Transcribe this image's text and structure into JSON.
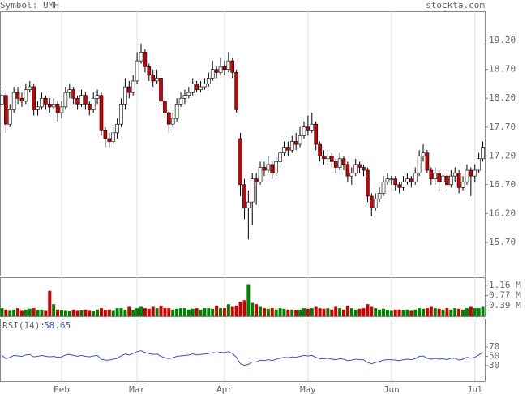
{
  "chart_data": [
    {
      "type": "candlestick",
      "title": "Symbol: UMH",
      "source": "stockta.com",
      "up_color": "#ffffff",
      "down_color": "#cc0000",
      "ylim": [
        15.12,
        19.71
      ],
      "yticks": [
        {
          "value": 15.7,
          "label": "15.70"
        },
        {
          "value": 16.2,
          "label": "16.20"
        },
        {
          "value": 16.7,
          "label": "16.70"
        },
        {
          "value": 17.2,
          "label": "17.20"
        },
        {
          "value": 17.7,
          "label": "17.70"
        },
        {
          "value": 18.2,
          "label": "18.20"
        },
        {
          "value": 18.7,
          "label": "18.70"
        },
        {
          "value": 19.2,
          "label": "19.20"
        }
      ],
      "open": [
        18.1,
        18.25,
        17.75,
        18.0,
        18.3,
        18.2,
        18.15,
        18.35,
        18.4,
        18.0,
        18.05,
        18.2,
        18.1,
        18.05,
        18.1,
        17.95,
        18.05,
        18.3,
        18.35,
        18.2,
        18.1,
        18.25,
        18.1,
        18.0,
        18.2,
        18.25,
        17.65,
        17.5,
        17.45,
        17.6,
        17.75,
        18.1,
        18.4,
        18.3,
        18.5,
        18.85,
        19.0,
        18.75,
        18.6,
        18.5,
        18.55,
        18.15,
        17.95,
        17.75,
        17.85,
        18.1,
        18.2,
        18.25,
        18.3,
        18.45,
        18.35,
        18.4,
        18.45,
        18.55,
        18.7,
        18.65,
        18.75,
        18.7,
        18.85,
        18.65,
        17.5,
        16.7,
        16.3,
        16.4,
        16.8,
        16.75,
        17.0,
        16.95,
        17.05,
        16.9,
        17.1,
        17.25,
        17.35,
        17.3,
        17.45,
        17.4,
        17.55,
        17.7,
        17.65,
        17.75,
        17.4,
        17.2,
        17.15,
        17.2,
        17.1,
        17.0,
        17.15,
        17.05,
        16.85,
        16.9,
        17.05,
        17.0,
        16.95,
        16.5,
        16.3,
        16.45,
        16.55,
        16.75,
        16.8,
        16.8,
        16.7,
        16.65,
        16.75,
        16.8,
        16.75,
        16.9,
        17.2,
        17.25,
        16.95,
        16.8,
        16.9,
        16.75,
        16.85,
        16.7,
        16.85,
        16.9,
        16.65,
        16.75,
        16.95,
        16.85,
        16.95,
        17.15
      ],
      "high": [
        18.35,
        18.3,
        18.1,
        18.4,
        18.4,
        18.3,
        18.45,
        18.5,
        18.45,
        18.15,
        18.3,
        18.25,
        18.2,
        18.2,
        18.15,
        18.15,
        18.4,
        18.45,
        18.4,
        18.25,
        18.35,
        18.3,
        18.15,
        18.3,
        18.35,
        18.3,
        17.7,
        17.6,
        17.7,
        17.85,
        18.2,
        18.55,
        18.5,
        18.6,
        19.0,
        19.15,
        19.05,
        18.8,
        18.7,
        18.7,
        18.6,
        18.2,
        18.0,
        17.95,
        18.2,
        18.3,
        18.35,
        18.4,
        18.55,
        18.5,
        18.5,
        18.55,
        18.65,
        18.85,
        18.75,
        18.9,
        18.85,
        19.0,
        18.9,
        18.7,
        17.6,
        16.8,
        16.6,
        16.9,
        16.9,
        17.1,
        17.1,
        17.2,
        17.1,
        17.2,
        17.35,
        17.45,
        17.45,
        17.55,
        17.6,
        17.7,
        17.8,
        17.9,
        17.95,
        17.8,
        17.45,
        17.3,
        17.3,
        17.25,
        17.15,
        17.25,
        17.2,
        17.1,
        17.0,
        17.15,
        17.1,
        17.05,
        17.0,
        16.55,
        16.55,
        16.65,
        16.85,
        16.9,
        16.85,
        16.85,
        16.75,
        16.85,
        16.9,
        16.85,
        17.0,
        17.3,
        17.4,
        17.3,
        17.0,
        17.0,
        16.95,
        16.95,
        16.9,
        16.95,
        17.0,
        16.95,
        16.85,
        17.05,
        17.0,
        17.05,
        17.25,
        17.45
      ],
      "low": [
        18.0,
        17.6,
        17.7,
        17.95,
        18.1,
        18.05,
        18.1,
        18.3,
        17.9,
        17.9,
        18.0,
        18.0,
        17.95,
        18.0,
        17.8,
        17.85,
        18.0,
        18.2,
        18.1,
        18.0,
        18.05,
        18.0,
        17.9,
        17.95,
        18.1,
        17.55,
        17.35,
        17.35,
        17.4,
        17.5,
        17.7,
        18.0,
        18.2,
        18.25,
        18.45,
        18.8,
        18.65,
        18.5,
        18.4,
        18.45,
        18.05,
        17.85,
        17.6,
        17.7,
        17.8,
        18.05,
        18.1,
        18.2,
        18.25,
        18.3,
        18.3,
        18.35,
        18.4,
        18.5,
        18.55,
        18.6,
        18.6,
        18.65,
        18.55,
        17.95,
        16.5,
        16.1,
        15.75,
        16.0,
        16.35,
        16.7,
        16.85,
        16.9,
        16.8,
        16.85,
        17.0,
        17.2,
        17.2,
        17.25,
        17.3,
        17.35,
        17.5,
        17.55,
        17.6,
        17.3,
        17.1,
        17.05,
        17.05,
        17.0,
        16.9,
        16.95,
        16.95,
        16.75,
        16.7,
        16.85,
        16.9,
        16.85,
        16.4,
        16.15,
        16.25,
        16.4,
        16.5,
        16.7,
        16.7,
        16.6,
        16.55,
        16.6,
        16.7,
        16.65,
        16.7,
        16.85,
        17.1,
        16.9,
        16.7,
        16.7,
        16.6,
        16.7,
        16.6,
        16.65,
        16.75,
        16.55,
        16.6,
        16.7,
        16.5,
        16.75,
        16.9,
        17.1
      ],
      "close": [
        18.25,
        17.75,
        18.0,
        18.3,
        18.2,
        18.15,
        18.35,
        18.4,
        18.0,
        18.05,
        18.2,
        18.1,
        18.05,
        18.1,
        17.95,
        18.05,
        18.3,
        18.35,
        18.2,
        18.1,
        18.25,
        18.1,
        18.0,
        18.2,
        18.25,
        17.65,
        17.5,
        17.45,
        17.6,
        17.75,
        18.1,
        18.4,
        18.3,
        18.5,
        18.85,
        19.0,
        18.75,
        18.6,
        18.5,
        18.55,
        18.15,
        17.95,
        17.75,
        17.85,
        18.1,
        18.2,
        18.25,
        18.3,
        18.45,
        18.35,
        18.4,
        18.45,
        18.55,
        18.7,
        18.65,
        18.75,
        18.7,
        18.85,
        18.65,
        18.0,
        16.7,
        16.3,
        16.4,
        16.8,
        16.75,
        17.0,
        16.95,
        17.05,
        16.9,
        17.1,
        17.25,
        17.35,
        17.3,
        17.45,
        17.4,
        17.55,
        17.7,
        17.65,
        17.75,
        17.4,
        17.2,
        17.15,
        17.2,
        17.1,
        17.0,
        17.15,
        17.05,
        16.85,
        16.9,
        17.05,
        17.0,
        16.95,
        16.5,
        16.3,
        16.45,
        16.55,
        16.75,
        16.8,
        16.8,
        16.7,
        16.65,
        16.75,
        16.8,
        16.75,
        16.9,
        17.2,
        17.25,
        16.95,
        16.8,
        16.9,
        16.75,
        16.85,
        16.7,
        16.85,
        16.9,
        16.65,
        16.75,
        16.95,
        16.85,
        16.95,
        17.15,
        17.35
      ]
    },
    {
      "type": "bar",
      "up_color": "#008000",
      "down_color": "#cc0000",
      "ylim": [
        0,
        1.46
      ],
      "yticks": [
        {
          "value": 0.39,
          "label": "0.39 M"
        },
        {
          "value": 0.77,
          "label": "0.77 M"
        },
        {
          "value": 1.16,
          "label": "1.16 M"
        }
      ],
      "values": [
        0.3,
        0.25,
        0.2,
        0.25,
        0.3,
        0.2,
        0.25,
        0.28,
        0.3,
        0.22,
        0.25,
        0.2,
        0.95,
        0.45,
        0.25,
        0.22,
        0.2,
        0.18,
        0.25,
        0.2,
        0.22,
        0.25,
        0.2,
        0.18,
        0.25,
        0.3,
        0.22,
        0.25,
        0.2,
        0.3,
        0.3,
        0.25,
        0.35,
        0.25,
        0.3,
        0.35,
        0.3,
        0.28,
        0.35,
        0.3,
        0.4,
        0.3,
        0.3,
        0.25,
        0.28,
        0.3,
        0.3,
        0.25,
        0.28,
        0.3,
        0.25,
        0.3,
        0.3,
        0.28,
        0.4,
        0.3,
        0.3,
        0.45,
        0.35,
        0.4,
        0.55,
        0.6,
        1.2,
        0.5,
        0.45,
        0.35,
        0.3,
        0.28,
        0.3,
        0.25,
        0.3,
        0.28,
        0.25,
        0.25,
        0.22,
        0.25,
        0.3,
        0.28,
        0.3,
        0.35,
        0.3,
        0.28,
        0.3,
        0.25,
        0.35,
        0.3,
        0.25,
        0.4,
        0.3,
        0.25,
        0.28,
        0.3,
        0.45,
        0.35,
        0.3,
        0.25,
        0.28,
        0.22,
        0.2,
        0.25,
        0.25,
        0.22,
        0.25,
        0.2,
        0.25,
        0.3,
        0.28,
        0.3,
        0.35,
        0.3,
        0.28,
        0.25,
        0.3,
        0.25,
        0.3,
        0.28,
        0.25,
        0.3,
        0.35,
        0.3,
        0.3,
        0.35
      ]
    },
    {
      "type": "line",
      "label": "RSI(14):",
      "current": 58.65,
      "color": "#3355cc",
      "ylim": [
        -3,
        131
      ],
      "yticks": [
        30,
        50,
        70
      ],
      "categories": [
        null,
        null,
        null,
        null,
        null,
        null,
        null,
        null,
        null,
        null,
        null,
        null,
        null,
        null,
        null,
        "Feb",
        null,
        null,
        null,
        null,
        null,
        null,
        null,
        null,
        null,
        null,
        null,
        null,
        null,
        null,
        null,
        null,
        null,
        null,
        "Mar",
        null,
        null,
        null,
        null,
        null,
        null,
        null,
        null,
        null,
        null,
        null,
        null,
        null,
        null,
        null,
        null,
        null,
        null,
        null,
        null,
        null,
        "Apr",
        null,
        null,
        null,
        null,
        null,
        null,
        null,
        null,
        null,
        null,
        null,
        null,
        null,
        null,
        null,
        null,
        null,
        null,
        null,
        null,
        "May",
        null,
        null,
        null,
        null,
        null,
        null,
        null,
        null,
        null,
        null,
        null,
        null,
        null,
        null,
        null,
        null,
        null,
        null,
        null,
        null,
        "Jun",
        null,
        null,
        null,
        null,
        null,
        null,
        null,
        null,
        null,
        null,
        null,
        null,
        null,
        null,
        null,
        null,
        null,
        null,
        null,
        null,
        "Jul",
        null,
        null
      ],
      "values": [
        52,
        45,
        48,
        52,
        51,
        50,
        53,
        54,
        49,
        50,
        52,
        50,
        49,
        50,
        48,
        49,
        53,
        54,
        52,
        50,
        52,
        50,
        49,
        51,
        52,
        44,
        42,
        42,
        44,
        46,
        51,
        55,
        53,
        56,
        60,
        62,
        58,
        56,
        54,
        55,
        50,
        47,
        45,
        47,
        50,
        51,
        52,
        53,
        55,
        53,
        54,
        55,
        56,
        58,
        57,
        59,
        58,
        60,
        56,
        48,
        34,
        31,
        33,
        38,
        38,
        42,
        41,
        43,
        41,
        44,
        46,
        48,
        47,
        49,
        48,
        50,
        52,
        51,
        52,
        48,
        45,
        45,
        46,
        44,
        43,
        45,
        44,
        41,
        42,
        44,
        43,
        43,
        37,
        34,
        37,
        39,
        42,
        43,
        43,
        42,
        41,
        43,
        44,
        43,
        45,
        50,
        51,
        46,
        44,
        46,
        44,
        45,
        43,
        46,
        46,
        42,
        44,
        48,
        46,
        48,
        53,
        58.65
      ]
    }
  ]
}
